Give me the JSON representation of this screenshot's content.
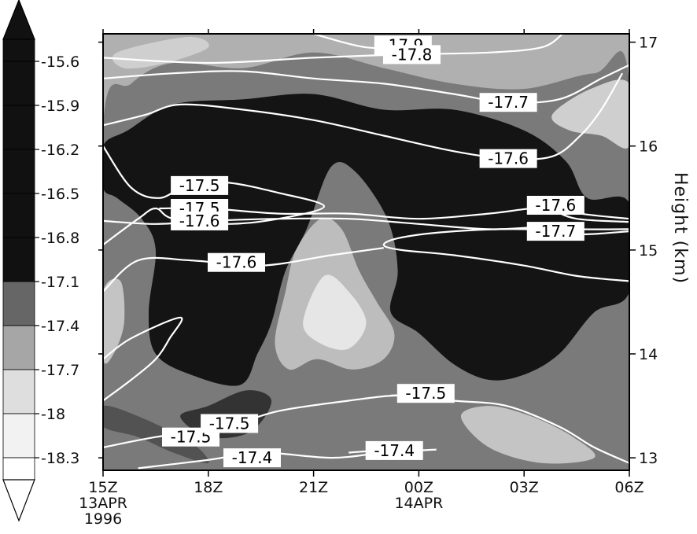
{
  "chart_data": {
    "type": "heatmap",
    "title": "",
    "ylabel": "Height (km)",
    "xlabel": "",
    "x_ticks": [
      {
        "hour": 0,
        "lines": [
          "15Z",
          "13APR",
          "1996"
        ]
      },
      {
        "hour": 3,
        "lines": [
          "18Z"
        ]
      },
      {
        "hour": 6,
        "lines": [
          "21Z"
        ]
      },
      {
        "hour": 9,
        "lines": [
          "00Z",
          "14APR"
        ]
      },
      {
        "hour": 12,
        "lines": [
          "03Z"
        ]
      },
      {
        "hour": 15,
        "lines": [
          "06Z"
        ]
      }
    ],
    "xlim": [
      0,
      15
    ],
    "y_ticks": [
      "13",
      "14",
      "15",
      "16",
      "17"
    ],
    "ylim": [
      12.88,
      17.08
    ],
    "colorbar": {
      "labels": [
        "-15.6",
        "-15.9",
        "-16.2",
        "-16.5",
        "-16.8",
        "-17.1",
        "-17.4",
        "-17.7",
        "-18",
        "-18.3"
      ],
      "colors": [
        "#111111",
        "#111111",
        "#111111",
        "#111111",
        "#111111",
        "#111111",
        "#666666",
        "#a6a6a6",
        "#dedede",
        "#f2f2f2",
        "#ffffff"
      ],
      "arrow_top": true,
      "arrow_bottom": true
    },
    "filled_regions": [
      {
        "level": "-17.4",
        "color": "#7a7a7a",
        "points": [
          [
            0,
            16.2
          ],
          [
            0.8,
            16.6
          ],
          [
            2,
            16.8
          ],
          [
            4,
            16.75
          ],
          [
            6,
            16.9
          ],
          [
            8,
            16.75
          ],
          [
            10,
            16.6
          ],
          [
            12,
            16.55
          ],
          [
            14,
            16.7
          ],
          [
            15,
            16.6
          ],
          [
            15,
            12.88
          ],
          [
            0,
            12.88
          ]
        ]
      },
      {
        "level": "-16.2",
        "color": "#141414",
        "points": [
          [
            0,
            16.0
          ],
          [
            0.7,
            16.15
          ],
          [
            2,
            16.4
          ],
          [
            4,
            16.45
          ],
          [
            6,
            16.5
          ],
          [
            8,
            16.35
          ],
          [
            10,
            16.35
          ],
          [
            12,
            16.15
          ],
          [
            13.2,
            15.85
          ],
          [
            13.8,
            15.5
          ],
          [
            15,
            15.45
          ],
          [
            15,
            14.6
          ],
          [
            14,
            14.4
          ],
          [
            13,
            14.0
          ],
          [
            12,
            13.8
          ],
          [
            11,
            13.75
          ],
          [
            10,
            13.9
          ],
          [
            9,
            14.2
          ],
          [
            8.2,
            14.4
          ],
          [
            8.4,
            14.8
          ],
          [
            8.1,
            15.3
          ],
          [
            7.2,
            15.75
          ],
          [
            6.5,
            15.8
          ],
          [
            5.8,
            15.2
          ],
          [
            5.2,
            14.8
          ],
          [
            4.8,
            14.3
          ],
          [
            4.4,
            14.0
          ],
          [
            3.9,
            13.7
          ],
          [
            2.5,
            13.8
          ],
          [
            1.5,
            14.0
          ],
          [
            1.3,
            14.4
          ],
          [
            1.5,
            15.0
          ],
          [
            1.1,
            15.3
          ],
          [
            0.4,
            15.5
          ],
          [
            0,
            15.6
          ]
        ]
      },
      {
        "level": "-17.1",
        "color": "#333333",
        "points": [
          [
            3,
            13.2
          ],
          [
            4.2,
            13.25
          ],
          [
            4.8,
            13.55
          ],
          [
            4.1,
            13.65
          ],
          [
            3,
            13.5
          ],
          [
            2.2,
            13.4
          ]
        ]
      },
      {
        "level": "-17.4",
        "color": "#525252",
        "points": [
          [
            0,
            13.3
          ],
          [
            1,
            13.2
          ],
          [
            2,
            13.05
          ],
          [
            3,
            12.95
          ],
          [
            2.5,
            13.15
          ],
          [
            1,
            13.4
          ],
          [
            0,
            13.5
          ]
        ]
      },
      {
        "level": "-17.7",
        "color": "#bdbdbd",
        "points": [
          [
            4.9,
            14.1
          ],
          [
            5.2,
            14.6
          ],
          [
            5.5,
            15.0
          ],
          [
            6.2,
            15.3
          ],
          [
            6.8,
            15.2
          ],
          [
            7.3,
            14.8
          ],
          [
            7.8,
            14.5
          ],
          [
            8.3,
            14.2
          ],
          [
            8.0,
            13.95
          ],
          [
            7.1,
            13.85
          ],
          [
            6.1,
            13.95
          ],
          [
            5.3,
            13.85
          ]
        ]
      },
      {
        "level": "-18",
        "color": "#e6e6e6",
        "points": [
          [
            5.7,
            14.3
          ],
          [
            6.3,
            14.75
          ],
          [
            7.0,
            14.6
          ],
          [
            7.5,
            14.3
          ],
          [
            7.0,
            14.05
          ],
          [
            6.2,
            14.1
          ]
        ]
      },
      {
        "level": "-17.7",
        "color": "#cfcfcf",
        "points": [
          [
            0.4,
            16.9
          ],
          [
            2.4,
            17.05
          ],
          [
            3,
            16.95
          ],
          [
            1.8,
            16.8
          ],
          [
            0.6,
            16.75
          ]
        ]
      },
      {
        "level": "-17.7",
        "color": "#cfcfcf",
        "points": [
          [
            12.8,
            16.3
          ],
          [
            13.9,
            16.55
          ],
          [
            15,
            16.6
          ],
          [
            15,
            16.0
          ],
          [
            14.2,
            16.1
          ],
          [
            13.3,
            16.15
          ]
        ]
      },
      {
        "level": "-17.7",
        "color": "#c4c4c4",
        "points": [
          [
            0,
            14.6
          ],
          [
            0.5,
            14.7
          ],
          [
            0.6,
            14.3
          ],
          [
            0.3,
            14.0
          ],
          [
            0,
            13.95
          ]
        ]
      },
      {
        "level": "-17.7",
        "color": "#c4c4c4",
        "points": [
          [
            10.2,
            13.4
          ],
          [
            11,
            13.5
          ],
          [
            12.2,
            13.4
          ],
          [
            13.4,
            13.2
          ],
          [
            14,
            13.0
          ],
          [
            12.5,
            12.95
          ],
          [
            11,
            13.1
          ]
        ]
      }
    ],
    "contours": [
      {
        "label": "-17.9",
        "points": [
          [
            6,
            17.08
          ],
          [
            7.5,
            16.95
          ],
          [
            9,
            16.95
          ]
        ],
        "label_at": [
          8.55,
          16.97
        ]
      },
      {
        "label": "-17.8",
        "points": [
          [
            0,
            16.85
          ],
          [
            3,
            16.8
          ],
          [
            6,
            16.85
          ],
          [
            8.5,
            16.88
          ],
          [
            11,
            16.9
          ],
          [
            12.5,
            16.95
          ],
          [
            13.1,
            17.08
          ]
        ],
        "label_at": [
          8.8,
          16.88
        ]
      },
      {
        "label": "-17.7",
        "points": [
          [
            0,
            16.65
          ],
          [
            2,
            16.7
          ],
          [
            4,
            16.72
          ],
          [
            6,
            16.65
          ],
          [
            8,
            16.6
          ],
          [
            10,
            16.5
          ],
          [
            11.5,
            16.42
          ],
          [
            13,
            16.45
          ],
          [
            14.2,
            16.65
          ],
          [
            15,
            16.78
          ]
        ],
        "label_at": [
          11.55,
          16.42
        ]
      },
      {
        "label": "-17.6",
        "points": [
          [
            0,
            16.2
          ],
          [
            1.2,
            16.3
          ],
          [
            2.2,
            16.4
          ],
          [
            4,
            16.35
          ],
          [
            6,
            16.25
          ],
          [
            8,
            16.1
          ],
          [
            10,
            15.95
          ],
          [
            11.5,
            15.88
          ],
          [
            12.8,
            15.9
          ],
          [
            13.6,
            16.1
          ],
          [
            14.2,
            16.35
          ],
          [
            14.8,
            16.7
          ]
        ],
        "label_at": [
          11.55,
          15.88
        ]
      },
      {
        "label": "-17.5",
        "points": [
          [
            0,
            16.0
          ],
          [
            0.8,
            15.6
          ],
          [
            1.6,
            15.5
          ],
          [
            2.4,
            15.62
          ],
          [
            3.5,
            15.65
          ],
          [
            5,
            15.55
          ],
          [
            6.3,
            15.42
          ],
          [
            5,
            15.3
          ],
          [
            3.5,
            15.25
          ],
          [
            2,
            15.3
          ],
          [
            1.5,
            15.4
          ],
          [
            1,
            15.3
          ],
          [
            0,
            15.05
          ]
        ],
        "label_at": [
          2.75,
          15.62
        ]
      },
      {
        "label": "-17.5",
        "points": [
          [
            1.6,
            15.4
          ],
          [
            3,
            15.4
          ],
          [
            5,
            15.35
          ],
          [
            7,
            15.35
          ],
          [
            9,
            15.3
          ],
          [
            11,
            15.35
          ],
          [
            12.5,
            15.4
          ],
          [
            13.5,
            15.3
          ],
          [
            15,
            15.27
          ]
        ],
        "label_at": [
          2.75,
          15.4
        ]
      },
      {
        "label": "-17.6",
        "points": [
          [
            0,
            15.28
          ],
          [
            1.5,
            15.25
          ],
          [
            3,
            15.28
          ],
          [
            5,
            15.3
          ],
          [
            7,
            15.3
          ],
          [
            9,
            15.25
          ],
          [
            11,
            15.2
          ],
          [
            12.5,
            15.22
          ],
          [
            13.5,
            15.2
          ],
          [
            15,
            15.2
          ]
        ],
        "label_at": [
          2.75,
          15.28
        ]
      },
      {
        "label": "-17.7",
        "points": [
          [
            15,
            15.18
          ],
          [
            13.5,
            15.15
          ],
          [
            12,
            15.2
          ],
          [
            10,
            15.18
          ],
          [
            8.5,
            15.12
          ],
          [
            8.0,
            15.05
          ],
          [
            8.5,
            15.0
          ],
          [
            10,
            14.95
          ],
          [
            12,
            14.85
          ],
          [
            13.5,
            14.75
          ],
          [
            15,
            14.7
          ]
        ],
        "label_at": [
          12.9,
          15.18
        ]
      },
      {
        "label": "-17.6",
        "points": [
          [
            0,
            14.6
          ],
          [
            1,
            14.9
          ],
          [
            2.5,
            14.9
          ],
          [
            4.5,
            14.85
          ],
          [
            6.5,
            14.95
          ],
          [
            8,
            15.02
          ]
        ],
        "label_at": [
          3.8,
          14.88
        ]
      },
      {
        "label": "-17.6",
        "points": [
          [
            12.9,
            15.42
          ],
          [
            13.6,
            15.35
          ],
          [
            15,
            15.3
          ]
        ],
        "label_at": [
          12.9,
          15.43
        ]
      },
      {
        "label": "-17.5",
        "points": [
          [
            0,
            13.55
          ],
          [
            0.8,
            13.75
          ],
          [
            1.5,
            13.95
          ],
          [
            1.9,
            14.15
          ],
          [
            2.2,
            14.35
          ],
          [
            0.8,
            14.15
          ],
          [
            0,
            13.95
          ]
        ],
        "label_at": [
          2.5,
          13.2
        ]
      },
      {
        "label": "-17.5",
        "points": [
          [
            0,
            13.1
          ],
          [
            1.5,
            13.2
          ],
          [
            3.5,
            13.3
          ],
          [
            5,
            13.45
          ],
          [
            7,
            13.55
          ],
          [
            8.5,
            13.6
          ],
          [
            10,
            13.55
          ],
          [
            11.5,
            13.5
          ],
          [
            13,
            13.3
          ],
          [
            14,
            13.1
          ],
          [
            15,
            12.95
          ]
        ],
        "label_at": [
          3.6,
          13.33
        ]
      },
      {
        "label": "-17.5",
        "points": [
          [
            8.2,
            13.6
          ],
          [
            10,
            13.62
          ]
        ],
        "label_at": [
          9.2,
          13.62
        ]
      },
      {
        "label": "-17.4",
        "points": [
          [
            1,
            12.9
          ],
          [
            3,
            12.98
          ],
          [
            4.5,
            13.05
          ],
          [
            6.5,
            13.0
          ],
          [
            8,
            13.05
          ],
          [
            9.5,
            13.08
          ]
        ],
        "label_at": [
          4.25,
          13.0
        ]
      },
      {
        "label": "-17.4",
        "points": [
          [
            7,
            13.05
          ],
          [
            9,
            13.1
          ]
        ],
        "label_at": [
          8.3,
          13.07
        ]
      }
    ]
  }
}
